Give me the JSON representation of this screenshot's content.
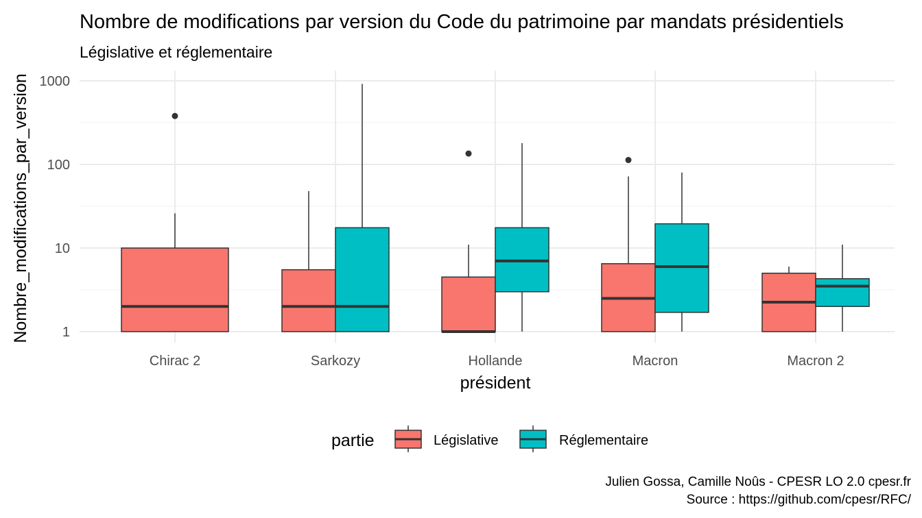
{
  "chart_data": {
    "type": "boxplot",
    "title": "Nombre de modifications par version du Code du patrimoine par mandats présidentiels",
    "subtitle": "Législative et réglementaire",
    "xlabel": "président",
    "ylabel": "Nombre_modifications_par_version",
    "y_scale": "log10",
    "ylim": [
      1,
      1000
    ],
    "y_ticks": [
      1,
      10,
      100,
      1000
    ],
    "y_tick_labels": [
      "1",
      "10",
      "100",
      "1000"
    ],
    "grid": true,
    "categories": [
      "Chirac 2",
      "Sarkozy",
      "Hollande",
      "Macron",
      "Macron 2"
    ],
    "legend": {
      "title": "partie",
      "position": "bottom"
    },
    "series": [
      {
        "name": "Législative",
        "color": "#F8766D",
        "boxes": [
          {
            "category": "Chirac 2",
            "min": 1,
            "q1": 1,
            "median": 2,
            "q3": 10,
            "max": 26,
            "outliers": [
              380
            ]
          },
          {
            "category": "Sarkozy",
            "min": 1,
            "q1": 1,
            "median": 2,
            "q3": 5.5,
            "max": 48,
            "outliers": []
          },
          {
            "category": "Hollande",
            "min": 1,
            "q1": 1,
            "median": 1,
            "q3": 4.5,
            "max": 11,
            "outliers": [
              135
            ]
          },
          {
            "category": "Macron",
            "min": 1,
            "q1": 1,
            "median": 2.5,
            "q3": 6.5,
            "max": 72,
            "outliers": [
              113
            ]
          },
          {
            "category": "Macron 2",
            "min": 1,
            "q1": 1,
            "median": 2.25,
            "q3": 5,
            "max": 6,
            "outliers": []
          }
        ]
      },
      {
        "name": "Réglementaire",
        "color": "#00BFC4",
        "boxes": [
          {
            "category": "Sarkozy",
            "min": 1,
            "q1": 1,
            "median": 2,
            "q3": 17.5,
            "max": 920,
            "outliers": []
          },
          {
            "category": "Hollande",
            "min": 1,
            "q1": 3,
            "median": 7,
            "q3": 17.5,
            "max": 180,
            "outliers": []
          },
          {
            "category": "Macron",
            "min": 1,
            "q1": 1.7,
            "median": 6,
            "q3": 19.5,
            "max": 80,
            "outliers": []
          },
          {
            "category": "Macron 2",
            "min": 1,
            "q1": 2,
            "median": 3.5,
            "q3": 4.3,
            "max": 11,
            "outliers": []
          }
        ]
      }
    ]
  },
  "caption": {
    "line1": "Julien Gossa, Camille Noûs - CPESR LO 2.0 cpesr.fr",
    "line2": "Source : https://github.com/cpesr/RFC/"
  }
}
